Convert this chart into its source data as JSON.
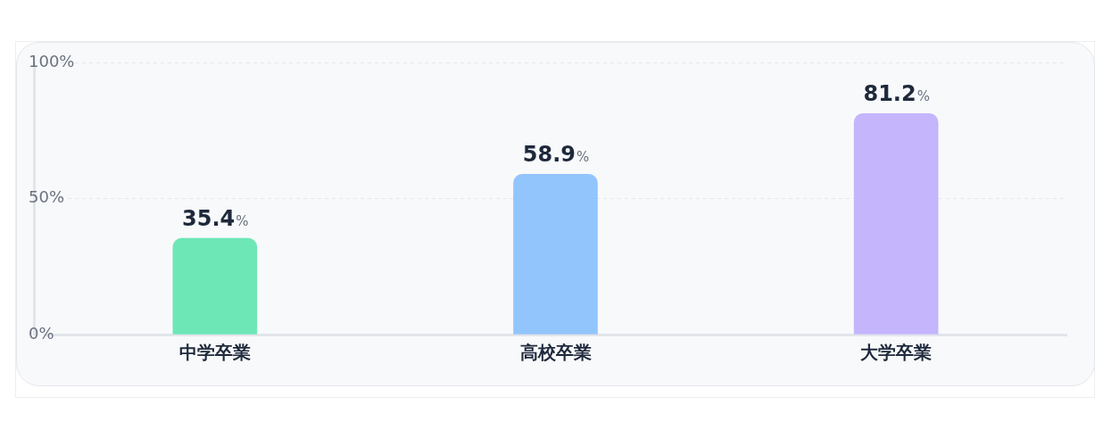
{
  "chart_data": {
    "type": "bar",
    "categories": [
      "中学卒業",
      "高校卒業",
      "大学卒業"
    ],
    "values": [
      35.4,
      58.9,
      81.2
    ],
    "colors": [
      "#6ee7b7",
      "#93c5fd",
      "#c4b5fd"
    ],
    "ylim": [
      0,
      100
    ],
    "yticks": [
      {
        "value": 0,
        "label": "0%"
      },
      {
        "value": 50,
        "label": "50%"
      },
      {
        "value": 100,
        "label": "100%"
      }
    ],
    "grid": "y",
    "value_labels": [
      "35.4%",
      "58.9%",
      "81.2%"
    ]
  }
}
